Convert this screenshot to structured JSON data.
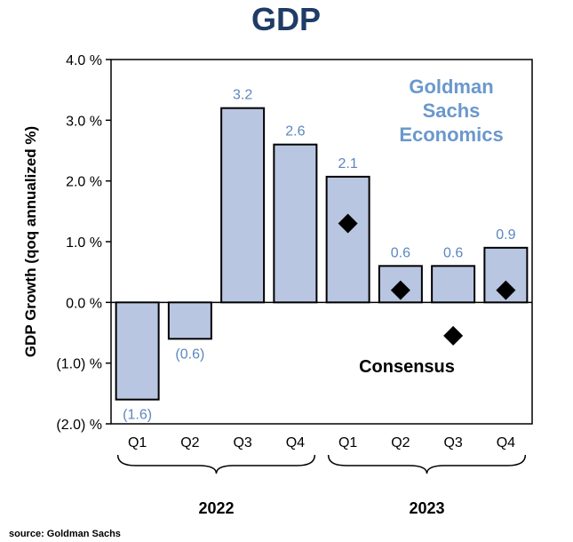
{
  "chart_data": {
    "type": "bar",
    "title": "GDP",
    "ylabel": "GDP Growth (qoq annualized %)",
    "ylim": [
      -2.0,
      4.0
    ],
    "yticks": [
      {
        "value": 4.0,
        "label": "4.0 %"
      },
      {
        "value": 3.0,
        "label": "3.0 %"
      },
      {
        "value": 2.0,
        "label": "2.0 %"
      },
      {
        "value": 1.0,
        "label": "1.0 %"
      },
      {
        "value": 0.0,
        "label": "0.0 %"
      },
      {
        "value": -1.0,
        "label": "(1.0) %"
      },
      {
        "value": -2.0,
        "label": "(2.0) %"
      }
    ],
    "categories": [
      "Q1",
      "Q2",
      "Q3",
      "Q4",
      "Q1",
      "Q2",
      "Q3",
      "Q4"
    ],
    "groups": [
      {
        "label": "2022",
        "from": 0,
        "to": 3
      },
      {
        "label": "2023",
        "from": 4,
        "to": 7
      }
    ],
    "values": [
      -1.6,
      -0.6,
      3.2,
      2.6,
      2.07,
      0.6,
      0.6,
      0.9
    ],
    "data_labels": [
      "(1.6)",
      "(0.6)",
      "3.2",
      "2.6",
      "2.1",
      "0.6",
      "0.6",
      "0.9"
    ],
    "consensus": [
      null,
      null,
      null,
      null,
      1.3,
      0.2,
      -0.55,
      0.2
    ],
    "consensus_label": "Consensus",
    "annotation": [
      "Goldman",
      "Sachs",
      "Economics"
    ],
    "grid": false
  },
  "source": "source: Goldman Sachs",
  "colors": {
    "title": "#1f3c66",
    "bar_fill": "#b9c6e2",
    "data_label": "#5b87bf",
    "brand": "#6a98cc",
    "marker": "#000000"
  }
}
